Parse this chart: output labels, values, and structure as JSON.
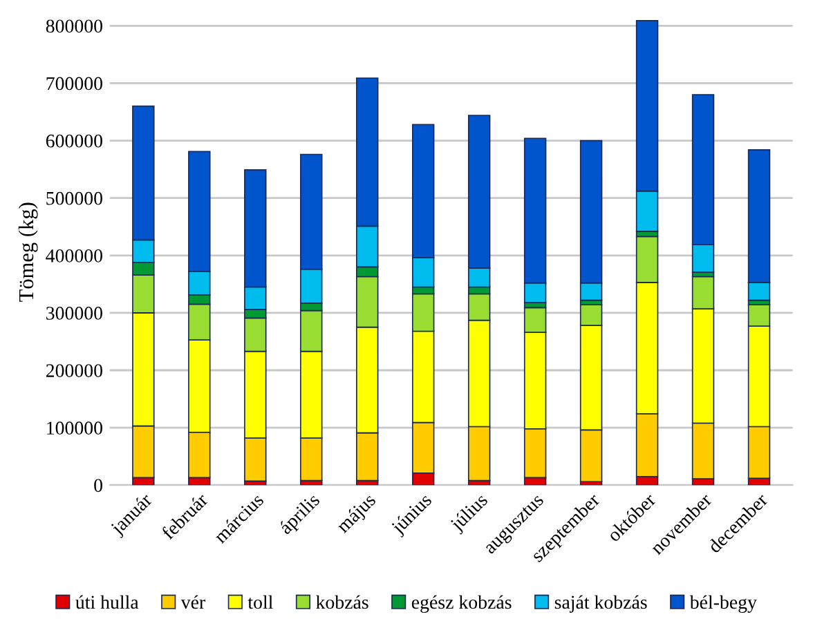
{
  "chart_data": {
    "type": "bar",
    "stacked": true,
    "ylabel": "Tömeg (kg)",
    "categories": [
      "január",
      "február",
      "március",
      "április",
      "május",
      "június",
      "július",
      "augusztus",
      "szeptember",
      "október",
      "november",
      "december"
    ],
    "series": [
      {
        "name": "úti hulla",
        "color": "#e00000",
        "values": [
          13000,
          13000,
          7000,
          8000,
          8000,
          21000,
          8000,
          13000,
          6000,
          15000,
          11000,
          12000
        ]
      },
      {
        "name": "vér",
        "color": "#ffcc00",
        "values": [
          90000,
          79000,
          75000,
          74000,
          83000,
          88000,
          94000,
          85000,
          90000,
          109000,
          97000,
          90000
        ]
      },
      {
        "name": "toll",
        "color": "#ffff00",
        "values": [
          197000,
          161000,
          151000,
          151000,
          184000,
          159000,
          185000,
          168000,
          182000,
          229000,
          199000,
          175000
        ]
      },
      {
        "name": "kobzás",
        "color": "#99dd33",
        "values": [
          66000,
          62000,
          58000,
          71000,
          88000,
          65000,
          46000,
          43000,
          36000,
          80000,
          56000,
          37000
        ]
      },
      {
        "name": "egész kobzás",
        "color": "#009933",
        "values": [
          22000,
          16000,
          15000,
          13000,
          17000,
          12000,
          12000,
          9000,
          8000,
          9000,
          8000,
          8000
        ]
      },
      {
        "name": "saját kobzás",
        "color": "#00bbee",
        "values": [
          39000,
          41000,
          39000,
          59000,
          71000,
          51000,
          33000,
          34000,
          30000,
          70000,
          48000,
          31000
        ]
      },
      {
        "name": "bél-begy",
        "color": "#0055cc",
        "values": [
          233000,
          209000,
          204000,
          200000,
          258000,
          232000,
          266000,
          252000,
          248000,
          297000,
          261000,
          231000
        ]
      }
    ],
    "ylim": [
      0,
      812000
    ],
    "yticks": [
      0,
      100000,
      200000,
      300000,
      400000,
      500000,
      600000,
      700000,
      800000
    ],
    "grid": "y",
    "legend": "bottom"
  }
}
